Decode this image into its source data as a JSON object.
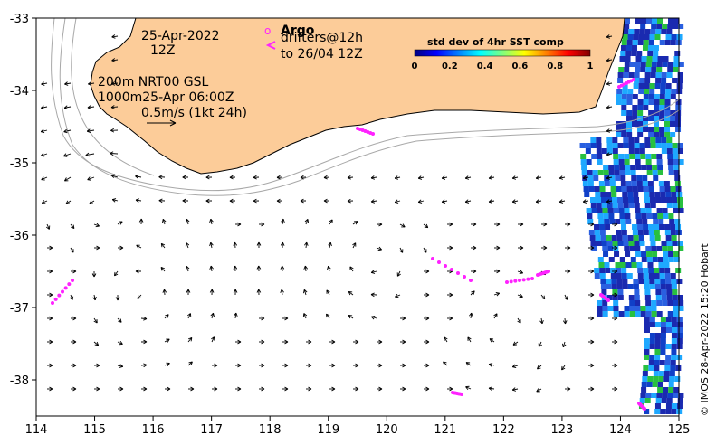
{
  "map": {
    "x_ticks": [
      "114",
      "115",
      "116",
      "117",
      "118",
      "119",
      "120",
      "121",
      "122",
      "123",
      "124",
      "125"
    ],
    "y_ticks": [
      "-33",
      "-34",
      "-35",
      "-36",
      "-37",
      "-38"
    ],
    "x_range": [
      114,
      125
    ],
    "y_range": [
      -38.5,
      -33
    ],
    "colors": {
      "land": "#fccc99",
      "coast": "#000000",
      "isobath": "#a8a8a8",
      "arrows": "#000000",
      "drifters": "#ff22ff",
      "sst_low": "#1a2ab0",
      "sst_mid": "#1ea8ff",
      "sst_green": "#28c040"
    }
  },
  "labels": {
    "date": "25-Apr-2022",
    "time": "12Z",
    "product_line1": "200m  NRT00 GSL",
    "product_line2": "1000m25-Apr 06:00Z",
    "scale_text": "0.5m/s (1kt 24h)",
    "argo_symbol": "o",
    "argo_label": "Argo",
    "drifters_label": "drifters@12h",
    "drifters_to": "to 26/04 12Z",
    "credit": "© IMOS 28-Apr-2022 15:20 Hobart"
  },
  "colorbar": {
    "title": "std dev of 4hr SST comp",
    "ticks": [
      "0",
      "0.2",
      "0.4",
      "0.6",
      "0.8",
      "1"
    ],
    "stops": [
      "#00007f",
      "#0000ff",
      "#007fff",
      "#00ffff",
      "#7fff7f",
      "#ffff00",
      "#ff7f00",
      "#ff0000",
      "#7f0000"
    ]
  }
}
